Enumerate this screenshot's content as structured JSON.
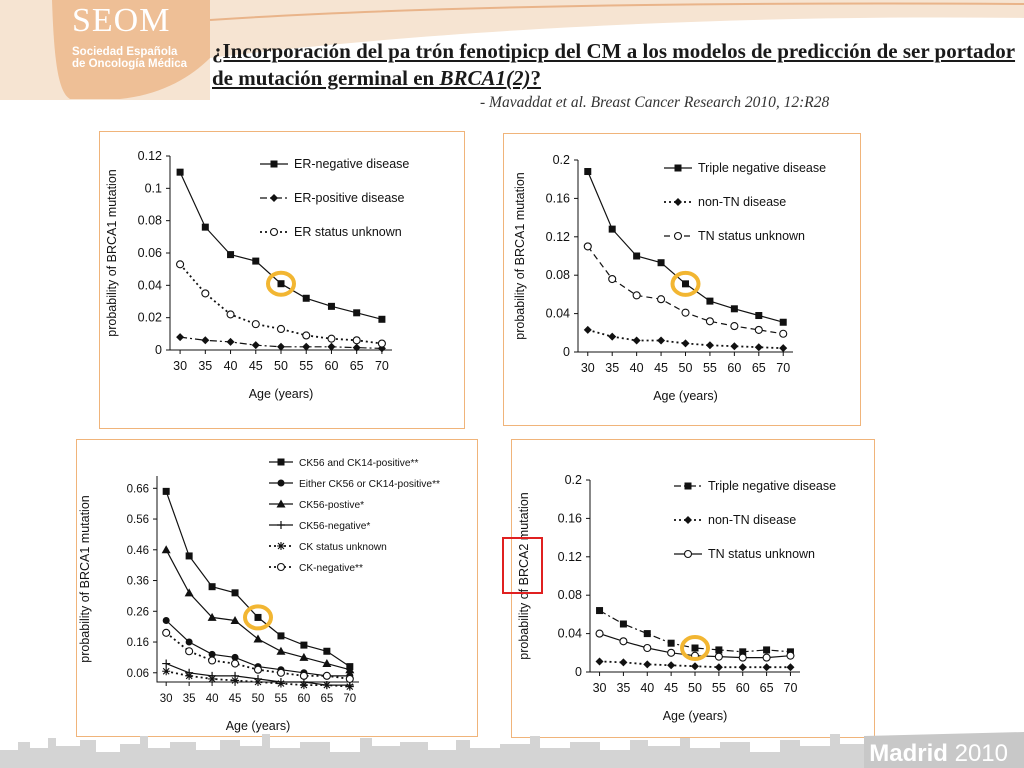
{
  "logo": {
    "name": "SEOM",
    "line1": "Sociedad Española",
    "line2": "de Oncología Médica"
  },
  "slide": {
    "title_main": "¿Incorporación del pa trón fenotipicp del CM a los modelos de predicción de ser portador de mutación  germinal en ",
    "title_italic": "BRCA1(2)",
    "title_end": "?",
    "citation": "- Mavaddat et al. Breast Cancer Research 2010, 12:R28"
  },
  "footer": {
    "city": "Madrid",
    "year": "2010"
  },
  "colors": {
    "box_border": "#f0b47a",
    "highlight_ring": "#f2b632",
    "red_box": "#e02020",
    "header_band": "#f6d8bd",
    "skyline": "#cfcfcf"
  },
  "chart_data": [
    {
      "type": "line",
      "xlabel": "Age (years)",
      "ylabel": "probability of BRCA1 mutation",
      "x": [
        30,
        35,
        40,
        45,
        50,
        55,
        60,
        65,
        70
      ],
      "ylim": [
        0,
        0.12
      ],
      "yticks": [
        "0",
        "0.02",
        "0.04",
        "0.06",
        "0.08",
        "0.1",
        "0.12"
      ],
      "legend_position": "top-right",
      "highlight_x": 50,
      "series": [
        {
          "name": "ER-negative disease",
          "marker": "square",
          "line": "solid",
          "values": [
            0.11,
            0.076,
            0.059,
            0.055,
            0.041,
            0.032,
            0.027,
            0.023,
            0.019
          ]
        },
        {
          "name": "ER-positive disease",
          "marker": "diamond",
          "line": "dashdot",
          "values": [
            0.008,
            0.006,
            0.005,
            0.003,
            0.002,
            0.002,
            0.002,
            0.0015,
            0.001
          ]
        },
        {
          "name": "ER status unknown",
          "marker": "circle-open",
          "line": "dotted",
          "values": [
            0.053,
            0.035,
            0.022,
            0.016,
            0.013,
            0.009,
            0.007,
            0.006,
            0.004
          ]
        }
      ]
    },
    {
      "type": "line",
      "xlabel": "Age (years)",
      "ylabel": "probability of BRCA1 mutation",
      "x": [
        30,
        35,
        40,
        45,
        50,
        55,
        60,
        65,
        70
      ],
      "ylim": [
        0,
        0.2
      ],
      "yticks": [
        "0",
        "0.04",
        "0.08",
        "0.12",
        "0.16",
        "0.2"
      ],
      "legend_position": "top-right",
      "highlight_x": 50,
      "series": [
        {
          "name": "Triple negative disease",
          "marker": "square",
          "line": "solid",
          "values": [
            0.188,
            0.128,
            0.1,
            0.093,
            0.071,
            0.053,
            0.045,
            0.038,
            0.031
          ]
        },
        {
          "name": "non-TN disease",
          "marker": "diamond",
          "line": "dotted",
          "values": [
            0.023,
            0.016,
            0.012,
            0.012,
            0.009,
            0.007,
            0.006,
            0.005,
            0.004
          ]
        },
        {
          "name": "TN status unknown",
          "marker": "circle-open",
          "line": "dashed",
          "values": [
            0.11,
            0.076,
            0.059,
            0.055,
            0.041,
            0.032,
            0.027,
            0.023,
            0.019
          ]
        }
      ]
    },
    {
      "type": "line",
      "xlabel": "Age (years)",
      "ylabel": "probability of BRCA1 mutation",
      "x": [
        30,
        35,
        40,
        45,
        50,
        55,
        60,
        65,
        70
      ],
      "ylim": [
        0,
        0.7
      ],
      "ymin_tick": 0.06,
      "yticks": [
        "0.06",
        "0.16",
        "0.26",
        "0.36",
        "0.46",
        "0.56",
        "0.66"
      ],
      "legend_position": "top-right",
      "highlight_x": 50,
      "series": [
        {
          "name": "CK56 and CK14-positive**",
          "marker": "square",
          "line": "solid",
          "values": [
            0.65,
            0.44,
            0.34,
            0.32,
            0.24,
            0.18,
            0.15,
            0.13,
            0.08
          ]
        },
        {
          "name": "Either CK56 or CK14-positive**",
          "marker": "circle-filled",
          "line": "solid",
          "values": [
            0.23,
            0.16,
            0.12,
            0.11,
            0.08,
            0.07,
            0.06,
            0.05,
            0.05
          ]
        },
        {
          "name": "CK56-postive*",
          "marker": "triangle",
          "line": "solid",
          "values": [
            0.46,
            0.32,
            0.24,
            0.23,
            0.17,
            0.13,
            0.11,
            0.09,
            0.07
          ]
        },
        {
          "name": "CK56-negative*",
          "marker": "plus",
          "line": "solid",
          "values": [
            0.09,
            0.06,
            0.05,
            0.05,
            0.04,
            0.03,
            0.03,
            0.02,
            0.02
          ]
        },
        {
          "name": "CK status unknown",
          "marker": "asterisk",
          "line": "dotted",
          "values": [
            0.065,
            0.05,
            0.04,
            0.035,
            0.03,
            0.025,
            0.02,
            0.02,
            0.015
          ]
        },
        {
          "name": "CK-negative**",
          "marker": "circle-open",
          "line": "dotted",
          "values": [
            0.19,
            0.13,
            0.1,
            0.09,
            0.07,
            0.06,
            0.05,
            0.05,
            0.04
          ]
        }
      ]
    },
    {
      "type": "line",
      "xlabel": "Age (years)",
      "ylabel": "probability of BRCA2 mutation",
      "x": [
        30,
        35,
        40,
        45,
        50,
        55,
        60,
        65,
        70
      ],
      "ylim": [
        0,
        0.2
      ],
      "yticks": [
        "0",
        "0.04",
        "0.08",
        "0.12",
        "0.16",
        "0.2"
      ],
      "legend_position": "top-right",
      "highlight_x": 50,
      "series": [
        {
          "name": "Triple negative disease",
          "marker": "square",
          "line": "dashdot",
          "values": [
            0.064,
            0.05,
            0.04,
            0.03,
            0.025,
            0.023,
            0.021,
            0.023,
            0.021
          ]
        },
        {
          "name": "non-TN disease",
          "marker": "diamond",
          "line": "dotted",
          "values": [
            0.011,
            0.01,
            0.008,
            0.007,
            0.006,
            0.005,
            0.005,
            0.005,
            0.005
          ]
        },
        {
          "name": "TN status unknown",
          "marker": "circle-open",
          "line": "solid",
          "values": [
            0.04,
            0.032,
            0.025,
            0.02,
            0.017,
            0.016,
            0.015,
            0.015,
            0.017
          ]
        }
      ]
    }
  ]
}
